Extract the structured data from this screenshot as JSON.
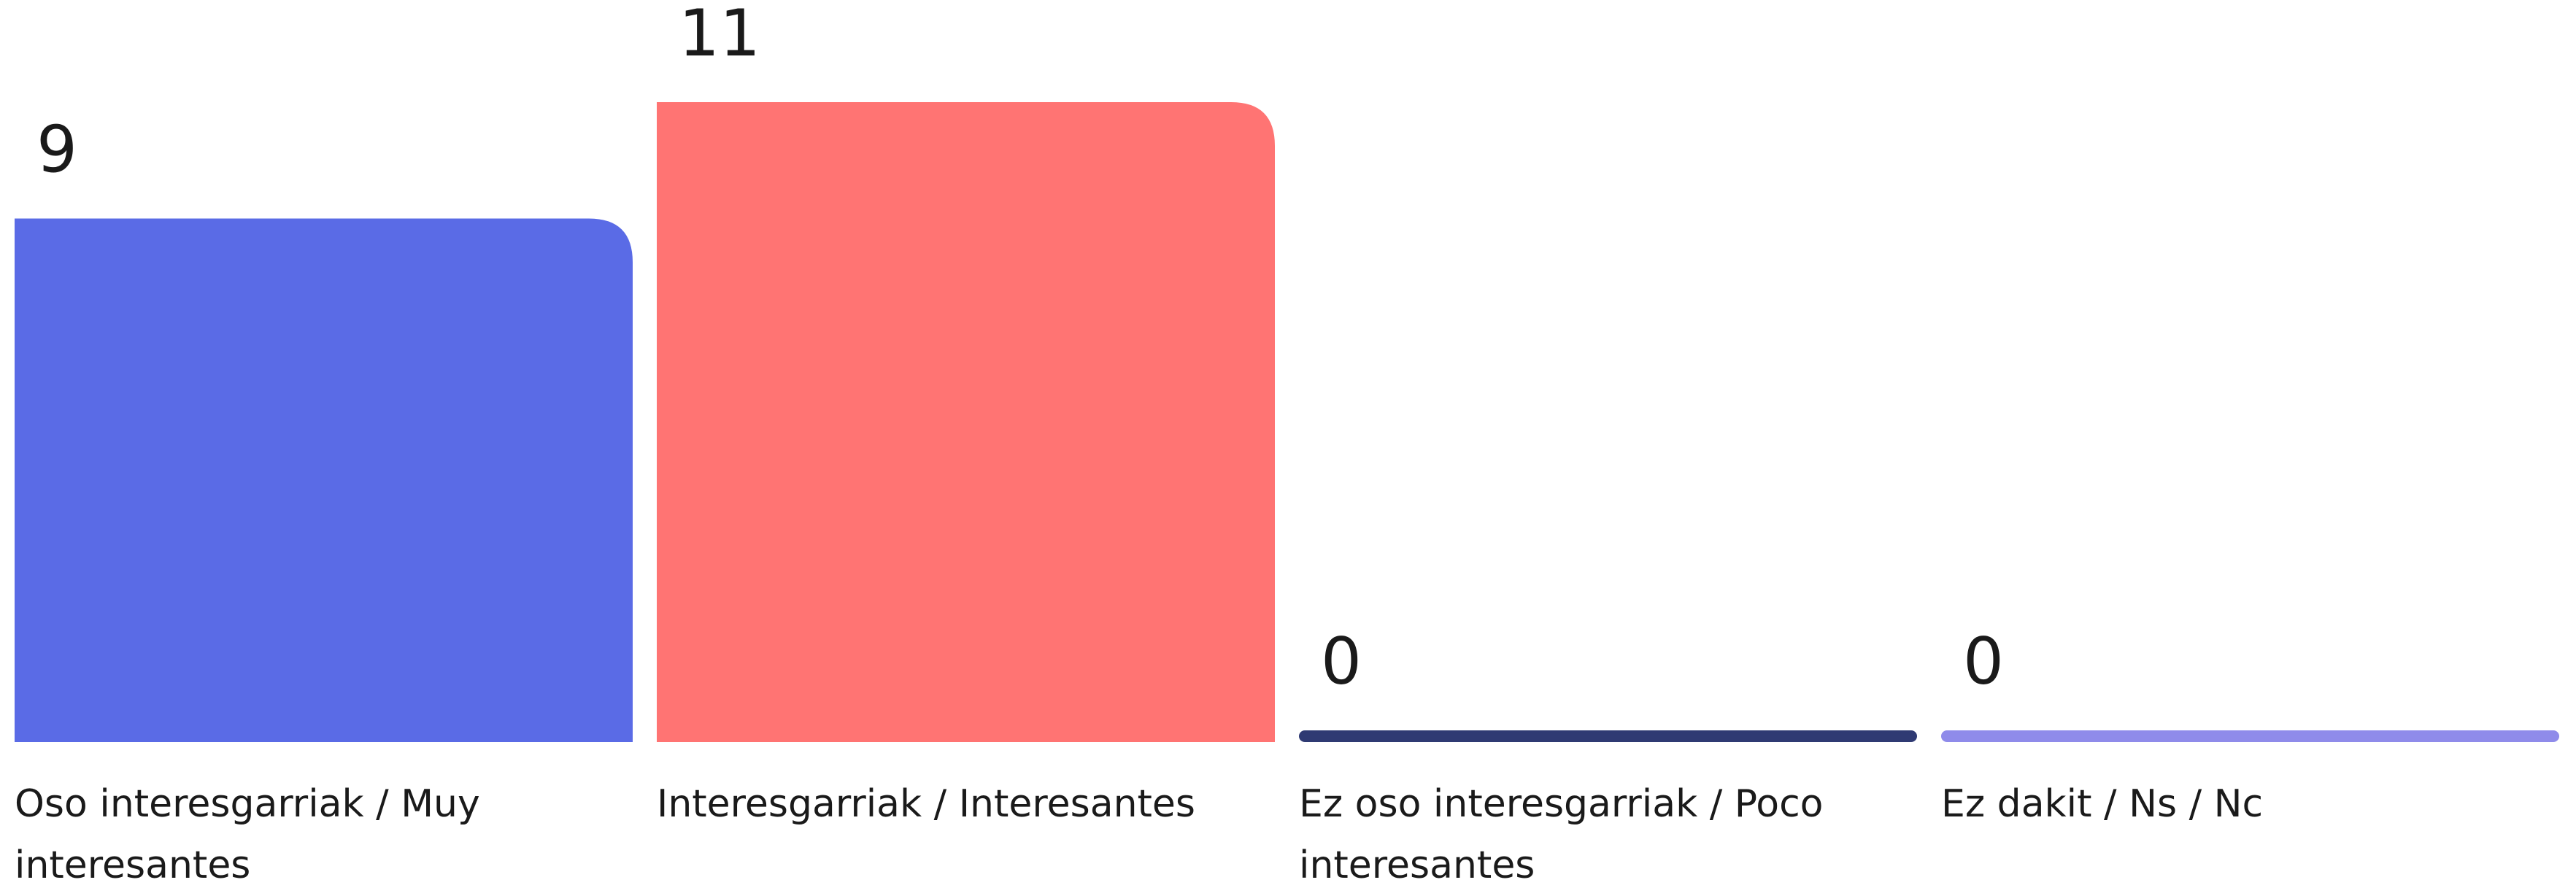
{
  "chart_data": {
    "type": "bar",
    "categories": [
      "Oso interesgarriak / Muy interesantes",
      "Interesgarriak / Interesantes",
      "Ez oso interesgarriak / Poco interesantes",
      "Ez dakit / Ns / Nc"
    ],
    "values": [
      9,
      11,
      0,
      0
    ],
    "colors": [
      "#5a6be6",
      "#ff7473",
      "#2f3a73",
      "#8f8bea"
    ]
  }
}
